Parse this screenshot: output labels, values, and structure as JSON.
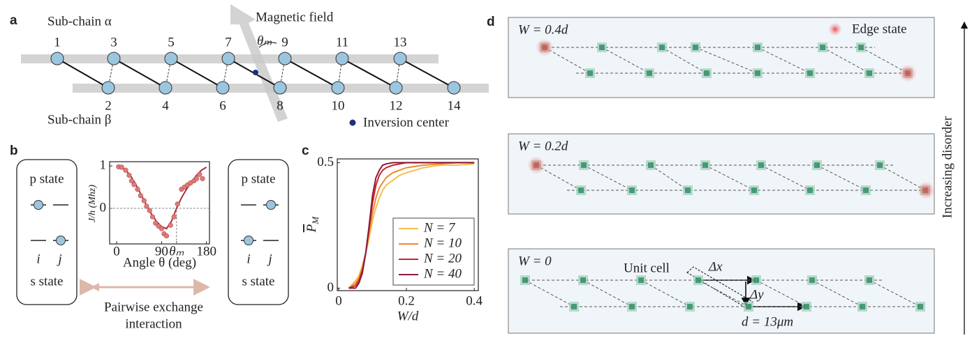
{
  "panel_labels": [
    "a",
    "b",
    "c",
    "d"
  ],
  "a": {
    "subchain_alpha": "Sub-chain α",
    "subchain_beta": "Sub-chain β",
    "field": "Magnetic field",
    "theta_m": "θₘ",
    "inversion": "Inversion center",
    "sites_top": [
      "1",
      "3",
      "5",
      "7",
      "9",
      "11",
      "13"
    ],
    "sites_bottom": [
      "2",
      "4",
      "6",
      "8",
      "10",
      "12",
      "14"
    ]
  },
  "b": {
    "p_state": "p state",
    "s_state": "s state",
    "i": "i",
    "j": "j",
    "exchange": [
      "Pairwise exchange",
      "interaction"
    ]
  },
  "d": {
    "panels": [
      "W = 0.4d",
      "W = 0.2d",
      "W = 0"
    ],
    "edge_state": "Edge state",
    "unit_cell": "Unit cell",
    "dx": "Δx",
    "dy": "Δy",
    "d_label": "d = 13μm",
    "axis_label": "Increasing disorder"
  },
  "chart_data": [
    {
      "type": "line",
      "xlabel": "Angle θ (deg)",
      "ylabel": "J/h (Mhz)",
      "xlim": [
        -14,
        186
      ],
      "ylim": [
        -0.84,
        1.1
      ],
      "xticks": [
        0,
        90,
        {
          "value": 120,
          "label": "θₘ"
        },
        180
      ],
      "yticks": [
        0,
        1
      ],
      "series": [
        {
          "type": "line",
          "color": "#a8323e",
          "x": [
            0,
            10,
            20,
            30,
            40,
            50,
            60,
            70,
            80,
            90,
            100,
            110,
            120,
            130,
            140,
            150,
            160,
            170,
            180
          ],
          "values": [
            1,
            0.97,
            0.88,
            0.73,
            0.53,
            0.3,
            0.07,
            -0.14,
            -0.31,
            -0.43,
            -0.48,
            -0.3,
            0,
            0.25,
            0.45,
            0.62,
            0.78,
            0.9,
            0.97
          ]
        },
        {
          "type": "scatter",
          "color": "#e07a7a",
          "x": [
            4,
            10,
            18,
            25,
            30,
            35,
            42,
            48,
            55,
            60,
            66,
            72,
            78,
            84,
            90,
            95,
            100,
            108,
            115,
            122,
            130,
            136,
            142,
            148,
            155,
            160,
            166,
            172
          ],
          "values": [
            0.98,
            0.97,
            0.9,
            0.78,
            0.65,
            0.56,
            0.45,
            0.3,
            0.18,
            0.05,
            -0.05,
            -0.2,
            -0.35,
            -0.42,
            -0.48,
            -0.6,
            -0.65,
            -0.4,
            -0.2,
            0.1,
            0.45,
            0.5,
            0.55,
            0.6,
            0.65,
            0.7,
            0.8,
            0.7
          ]
        }
      ]
    },
    {
      "type": "line",
      "xlabel": "W/d",
      "ylabel": {
        "text": "P",
        "sub": "M"
      },
      "xlim": [
        -0.004,
        0.412
      ],
      "ylim": [
        -0.01,
        0.515
      ],
      "xticks": [
        0,
        0.2,
        0.4
      ],
      "yticks": [
        0,
        0.5
      ],
      "legend": "lower right",
      "series": [
        {
          "name": "N = 7",
          "color": "#f2c14e",
          "x": [
            0.03,
            0.05,
            0.06,
            0.07,
            0.08,
            0.09,
            0.1,
            0.11,
            0.12,
            0.13,
            0.14,
            0.16,
            0.18,
            0.2,
            0.25,
            0.3,
            0.35,
            0.4
          ],
          "values": [
            0,
            0.03,
            0.05,
            0.09,
            0.14,
            0.2,
            0.27,
            0.32,
            0.36,
            0.39,
            0.41,
            0.43,
            0.45,
            0.46,
            0.48,
            0.49,
            0.49,
            0.495
          ]
        },
        {
          "name": "N = 10",
          "color": "#ef8a2c",
          "x": [
            0.03,
            0.05,
            0.06,
            0.07,
            0.08,
            0.09,
            0.1,
            0.11,
            0.12,
            0.13,
            0.14,
            0.16,
            0.18,
            0.2,
            0.25,
            0.3,
            0.35,
            0.4
          ],
          "values": [
            0,
            0.02,
            0.04,
            0.08,
            0.14,
            0.22,
            0.3,
            0.36,
            0.4,
            0.42,
            0.44,
            0.46,
            0.47,
            0.48,
            0.49,
            0.495,
            0.5,
            0.5
          ]
        },
        {
          "name": "N = 20",
          "color": "#c8242b",
          "x": [
            0.03,
            0.05,
            0.06,
            0.07,
            0.08,
            0.09,
            0.1,
            0.11,
            0.12,
            0.13,
            0.14,
            0.16,
            0.18,
            0.2,
            0.25,
            0.3,
            0.35,
            0.4
          ],
          "values": [
            0,
            0.01,
            0.03,
            0.07,
            0.14,
            0.24,
            0.34,
            0.41,
            0.45,
            0.47,
            0.48,
            0.49,
            0.495,
            0.5,
            0.5,
            0.5,
            0.5,
            0.5
          ]
        },
        {
          "name": "N = 40",
          "color": "#8b1a3a",
          "x": [
            0.03,
            0.05,
            0.06,
            0.07,
            0.08,
            0.09,
            0.1,
            0.11,
            0.12,
            0.13,
            0.14,
            0.16,
            0.18,
            0.2,
            0.25,
            0.3,
            0.35,
            0.4
          ],
          "values": [
            0,
            0,
            0.02,
            0.06,
            0.14,
            0.25,
            0.37,
            0.44,
            0.47,
            0.49,
            0.495,
            0.5,
            0.5,
            0.5,
            0.5,
            0.5,
            0.5,
            0.5
          ]
        }
      ]
    }
  ]
}
